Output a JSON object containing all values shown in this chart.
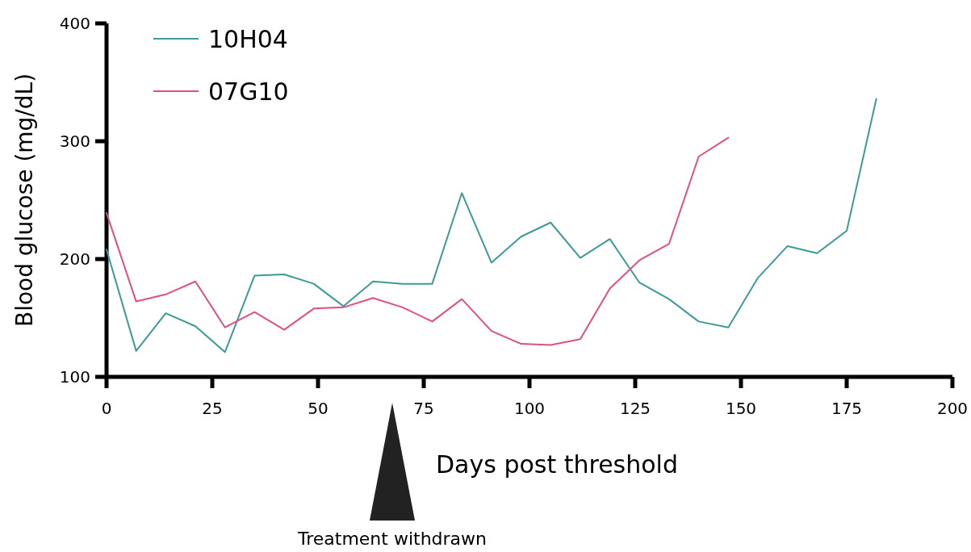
{
  "chart_data": {
    "type": "line",
    "xlabel": "Days post threshold",
    "ylabel": "Blood glucose (mg/dL)",
    "xlim": [
      0,
      200
    ],
    "xticks": [
      0,
      25,
      50,
      75,
      100,
      125,
      150,
      175,
      200
    ],
    "ylim": [
      100,
      400
    ],
    "yticks": [
      100,
      200,
      300,
      400
    ],
    "grid": false,
    "legend": "top left",
    "marker": "none",
    "line_style": "solid",
    "annotations": [
      "Treatment withdrawn"
    ],
    "series": [
      {
        "name": "10H04",
        "color": "#3d9a98",
        "x": [
          0,
          7,
          14,
          21,
          28,
          35,
          42,
          49,
          56,
          63,
          70,
          77,
          84,
          91,
          98,
          105,
          112,
          119,
          126,
          133,
          140,
          147,
          154,
          161,
          168,
          175,
          182
        ],
        "values": [
          208,
          122,
          154,
          143,
          121,
          186,
          187,
          179,
          160,
          181,
          179,
          179,
          256,
          197,
          219,
          231,
          201,
          217,
          180,
          166,
          147,
          142,
          184,
          211,
          205,
          224,
          336
        ]
      },
      {
        "name": "07G10",
        "color": "#e0507e",
        "x": [
          0,
          7,
          14,
          21,
          28,
          35,
          42,
          49,
          56,
          63,
          70,
          77,
          84,
          91,
          98,
          105,
          112,
          119,
          126,
          133,
          140,
          147
        ],
        "values": [
          239,
          164,
          170,
          181,
          142,
          155,
          140,
          158,
          159,
          167,
          159,
          147,
          166,
          139,
          128,
          127,
          132,
          175,
          199,
          213,
          287,
          303
        ]
      }
    ]
  }
}
